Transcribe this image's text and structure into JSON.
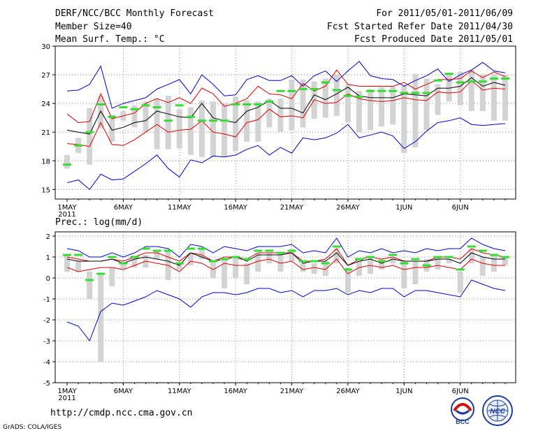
{
  "header": {
    "title": "DERF/NCC/BCC Monthly Forecast",
    "member_size": "Member Size=40",
    "variable": "Mean Surf. Temp.: °C",
    "period": "For 2011/05/01-2011/06/09",
    "started": "Fcst Started Refer Date 2011/04/30",
    "produced": "Fcst Produced Date 2011/05/01"
  },
  "footer": {
    "url": "http://cmdp.ncc.cma.gov.cn",
    "credit": "GrADS: COLA/IGES",
    "logo_bcc": "BCC",
    "logo_ncc": "NCC"
  },
  "colors": {
    "max_min": "#0000cc",
    "spread": "#dd0000",
    "mean": "#000000",
    "obs": "#33dd33",
    "box": "#d3d3d3",
    "grid": "#888888"
  },
  "chart_data": [
    {
      "type": "line",
      "title": "Mean Surf. Temp.: °C",
      "xlabel": "",
      "ylabel": "",
      "x_tick_labels": [
        "1MAY",
        "6MAY",
        "11MAY",
        "16MAY",
        "21MAY",
        "26MAY",
        "1JUN",
        "6JUN"
      ],
      "x_year_label": "2011",
      "ylim": [
        14,
        30
      ],
      "yticks": [
        15,
        18,
        21,
        24,
        27,
        30
      ],
      "ytick_labels": [
        "15",
        "18",
        "21",
        "24",
        "27",
        "30"
      ],
      "days": 40,
      "series": [
        {
          "name": "Max",
          "values": [
            25.3,
            25.4,
            26.0,
            27.9,
            23.5,
            24.0,
            24.3,
            24.6,
            25.5,
            26.0,
            26.5,
            25.0,
            27.0,
            26.0,
            24.8,
            24.9,
            26.5,
            26.9,
            26.4,
            26.4,
            26.9,
            25.8,
            26.9,
            27.4,
            26.3,
            27.4,
            28.4,
            26.9,
            26.6,
            26.5,
            25.8,
            26.4,
            26.9,
            27.6,
            26.3,
            27.0,
            27.5,
            28.3,
            27.4,
            27.2
          ]
        },
        {
          "name": "Upper spread",
          "values": [
            22.9,
            22.0,
            22.1,
            25.0,
            22.4,
            22.7,
            23.0,
            24.0,
            24.5,
            24.1,
            24.6,
            24.0,
            25.6,
            25.0,
            23.7,
            24.0,
            24.5,
            25.8,
            25.0,
            24.9,
            24.5,
            26.1,
            25.3,
            25.8,
            27.5,
            26.0,
            25.8,
            25.8,
            25.8,
            25.8,
            26.2,
            25.5,
            26.0,
            26.5,
            26.5,
            26.6,
            27.4,
            26.7,
            27.3,
            26.8
          ]
        },
        {
          "name": "Ensemble mean",
          "values": [
            21.2,
            21.0,
            20.8,
            23.2,
            21.2,
            21.5,
            22.0,
            22.2,
            23.2,
            22.9,
            22.6,
            22.5,
            24.0,
            22.5,
            22.2,
            22.0,
            23.2,
            23.6,
            24.3,
            23.5,
            23.5,
            23.0,
            24.9,
            24.4,
            25.0,
            25.7,
            24.8,
            24.6,
            24.6,
            24.6,
            25.0,
            24.9,
            24.8,
            25.6,
            25.6,
            25.8,
            26.7,
            25.8,
            26.2,
            25.9
          ]
        },
        {
          "name": "Lower spread",
          "values": [
            19.8,
            19.7,
            19.5,
            22.0,
            19.7,
            19.6,
            20.2,
            21.0,
            21.8,
            21.0,
            21.2,
            21.3,
            22.2,
            21.0,
            20.8,
            20.5,
            22.0,
            22.3,
            23.4,
            22.6,
            22.7,
            22.5,
            24.4,
            24.0,
            24.1,
            25.0,
            24.5,
            24.3,
            24.2,
            24.3,
            24.6,
            24.4,
            24.3,
            25.2,
            25.1,
            25.2,
            26.4,
            25.4,
            25.6,
            25.5
          ]
        },
        {
          "name": "Min",
          "values": [
            15.7,
            16.0,
            15.0,
            16.6,
            16.0,
            16.1,
            16.9,
            17.7,
            18.6,
            17.2,
            16.3,
            18.1,
            17.8,
            18.5,
            18.4,
            18.6,
            19.2,
            19.6,
            18.6,
            19.4,
            18.8,
            20.4,
            20.2,
            20.4,
            20.9,
            21.8,
            20.4,
            20.7,
            21.0,
            20.6,
            19.3,
            20.0,
            21.1,
            22.0,
            22.2,
            22.5,
            21.8,
            21.7,
            21.8,
            21.9
          ]
        },
        {
          "name": "Observed",
          "values": [
            17.6,
            19.6,
            21.0,
            23.9,
            22.6,
            23.6,
            23.4,
            23.8,
            23.6,
            22.2,
            23.8,
            22.6,
            22.2,
            22.2,
            22.2,
            23.9,
            23.9,
            23.9,
            24.2,
            25.3,
            25.3,
            25.5,
            25.5,
            26.2,
            25.4,
            24.8,
            24.7,
            25.3,
            25.3,
            25.3,
            25.1,
            25.1,
            25.1,
            26.4,
            27.1,
            26.2,
            26.3,
            26.3,
            26.6,
            26.6
          ]
        }
      ],
      "box_ranges": [
        [
          17.2,
          18.6
        ],
        [
          18.8,
          20.4
        ],
        [
          17.6,
          23.5
        ],
        [
          21.4,
          24.8
        ],
        [
          20.0,
          22.8
        ],
        [
          22.2,
          23.2
        ],
        [
          21.5,
          23.8
        ],
        [
          21.0,
          24.2
        ],
        [
          19.2,
          24.5
        ],
        [
          19.2,
          24.8
        ],
        [
          19.3,
          23.4
        ],
        [
          18.6,
          23.6
        ],
        [
          18.4,
          24.3
        ],
        [
          18.4,
          24.2
        ],
        [
          18.4,
          24.0
        ],
        [
          19.0,
          24.7
        ],
        [
          20.0,
          24.3
        ],
        [
          20.0,
          24.2
        ],
        [
          21.5,
          24.5
        ],
        [
          21.0,
          24.5
        ],
        [
          21.2,
          26.5
        ],
        [
          21.5,
          26.5
        ],
        [
          22.4,
          26.3
        ],
        [
          22.5,
          26.6
        ],
        [
          22.7,
          27.0
        ],
        [
          22.0,
          26.0
        ],
        [
          21.0,
          25.3
        ],
        [
          21.2,
          25.5
        ],
        [
          21.6,
          25.7
        ],
        [
          21.8,
          25.8
        ],
        [
          18.8,
          25.8
        ],
        [
          19.4,
          27.1
        ],
        [
          21.2,
          26.6
        ],
        [
          22.8,
          26.0
        ],
        [
          24.2,
          27.0
        ],
        [
          23.8,
          27.3
        ],
        [
          23.2,
          27.5
        ],
        [
          23.2,
          27.0
        ],
        [
          22.2,
          27.1
        ],
        [
          22.2,
          27.0
        ]
      ]
    },
    {
      "type": "line",
      "title": "Prec.: log(mm/d)",
      "xlabel": "",
      "ylabel": "",
      "x_tick_labels": [
        "1MAY",
        "6MAY",
        "11MAY",
        "16MAY",
        "21MAY",
        "26MAY",
        "1JUN",
        "6JUN"
      ],
      "x_year_label": "2011",
      "ylim": [
        -5,
        2.2
      ],
      "yticks": [
        -5,
        -4,
        -3,
        -2,
        -1,
        0,
        1,
        2
      ],
      "ytick_labels": [
        "-5",
        "-4",
        "-3",
        "-2",
        "-1",
        "0",
        "1",
        "2"
      ],
      "days": 40,
      "series": [
        {
          "name": "Max",
          "values": [
            1.4,
            1.3,
            1.0,
            1.0,
            1.2,
            1.0,
            1.2,
            1.5,
            1.5,
            1.4,
            1.0,
            1.6,
            1.5,
            1.2,
            1.5,
            1.4,
            1.3,
            1.5,
            1.5,
            1.5,
            1.6,
            1.2,
            1.3,
            1.2,
            1.9,
            1.0,
            1.3,
            1.2,
            1.4,
            1.2,
            1.3,
            1.2,
            1.4,
            1.3,
            1.4,
            1.4,
            1.9,
            1.6,
            1.4,
            1.3
          ]
        },
        {
          "name": "Upper spread",
          "values": [
            1.0,
            0.9,
            0.8,
            0.8,
            0.9,
            0.8,
            1.0,
            1.2,
            1.2,
            1.0,
            0.8,
            1.2,
            1.1,
            0.8,
            1.0,
            1.0,
            0.9,
            1.2,
            1.2,
            1.2,
            1.2,
            0.8,
            0.8,
            0.9,
            1.4,
            0.6,
            0.9,
            1.0,
            0.9,
            1.0,
            0.8,
            0.8,
            0.8,
            1.0,
            1.0,
            0.9,
            1.4,
            1.2,
            1.1,
            1.0
          ]
        },
        {
          "name": "Ensemble mean",
          "values": [
            0.9,
            0.8,
            0.8,
            0.8,
            0.9,
            0.7,
            0.9,
            1.0,
            0.9,
            0.8,
            0.6,
            1.2,
            1.0,
            0.8,
            0.9,
            1.0,
            0.8,
            1.1,
            1.1,
            1.1,
            1.2,
            0.7,
            0.8,
            0.8,
            1.2,
            0.6,
            0.8,
            0.9,
            0.7,
            0.9,
            0.8,
            0.8,
            0.8,
            0.9,
            0.9,
            0.7,
            1.2,
            1.0,
            0.9,
            0.9
          ]
        },
        {
          "name": "Lower spread",
          "values": [
            0.5,
            0.3,
            0.4,
            0.5,
            0.5,
            0.4,
            0.6,
            0.8,
            0.7,
            0.6,
            0.3,
            0.8,
            0.7,
            0.4,
            0.7,
            0.6,
            0.6,
            0.8,
            0.9,
            0.7,
            0.8,
            0.4,
            0.5,
            0.4,
            0.9,
            0.2,
            0.5,
            0.6,
            0.5,
            0.6,
            0.4,
            0.5,
            0.5,
            0.6,
            0.5,
            0.4,
            0.9,
            0.7,
            0.6,
            0.6
          ]
        },
        {
          "name": "Min",
          "values": [
            -2.1,
            -2.3,
            -3.0,
            -1.6,
            -1.2,
            -1.3,
            -1.1,
            -0.9,
            -0.6,
            -0.8,
            -1.0,
            -1.4,
            -0.9,
            -0.7,
            -0.7,
            -0.8,
            -0.7,
            -0.5,
            -0.5,
            -0.7,
            -0.6,
            -0.9,
            -0.6,
            -0.6,
            -0.5,
            -0.8,
            -0.6,
            -0.7,
            -0.5,
            -0.5,
            -0.9,
            -0.6,
            -0.6,
            -0.7,
            -0.8,
            -0.9,
            -0.1,
            -0.3,
            -0.5,
            -0.6
          ]
        },
        {
          "name": "Observed",
          "values": [
            1.1,
            1.1,
            -0.1,
            0.2,
            1.0,
            0.7,
            1.0,
            1.4,
            1.3,
            1.3,
            0.7,
            1.4,
            1.4,
            0.8,
            0.9,
            1.0,
            0.9,
            1.3,
            1.3,
            1.2,
            1.3,
            0.8,
            0.8,
            0.7,
            1.5,
            0.4,
            0.9,
            1.0,
            0.8,
            1.1,
            0.7,
            0.9,
            0.6,
            1.0,
            1.0,
            0.4,
            1.5,
            1.3,
            1.1,
            1.0
          ]
        }
      ],
      "box_ranges": [
        [
          0.3,
          1.1
        ],
        [
          0.3,
          0.8
        ],
        [
          -1.0,
          0.3
        ],
        [
          -4.0,
          0.2
        ],
        [
          -0.4,
          0.5
        ],
        [
          0.4,
          0.7
        ],
        [
          0.5,
          1.0
        ],
        [
          0.5,
          1.1
        ],
        [
          0.9,
          1.3
        ],
        [
          -0.1,
          1.3
        ],
        [
          0.4,
          0.7
        ],
        [
          0.6,
          1.2
        ],
        [
          0.9,
          1.4
        ],
        [
          0.0,
          0.8
        ],
        [
          -0.5,
          0.9
        ],
        [
          0.0,
          1.0
        ],
        [
          -0.3,
          0.7
        ],
        [
          0.3,
          1.2
        ],
        [
          0.7,
          1.2
        ],
        [
          0.3,
          1.2
        ],
        [
          0.8,
          1.3
        ],
        [
          0.3,
          0.7
        ],
        [
          0.2,
          0.7
        ],
        [
          0.1,
          0.8
        ],
        [
          0.7,
          1.4
        ],
        [
          -0.7,
          0.5
        ],
        [
          0.1,
          0.8
        ],
        [
          0.2,
          1.0
        ],
        [
          0.4,
          0.9
        ],
        [
          0.7,
          1.0
        ],
        [
          -0.5,
          0.8
        ],
        [
          -0.3,
          0.8
        ],
        [
          0.3,
          0.9
        ],
        [
          0.4,
          1.0
        ],
        [
          0.7,
          0.9
        ],
        [
          -0.7,
          0.3
        ],
        [
          0.7,
          1.4
        ],
        [
          0.1,
          1.0
        ],
        [
          0.3,
          1.1
        ],
        [
          0.6,
          1.0
        ]
      ]
    }
  ]
}
